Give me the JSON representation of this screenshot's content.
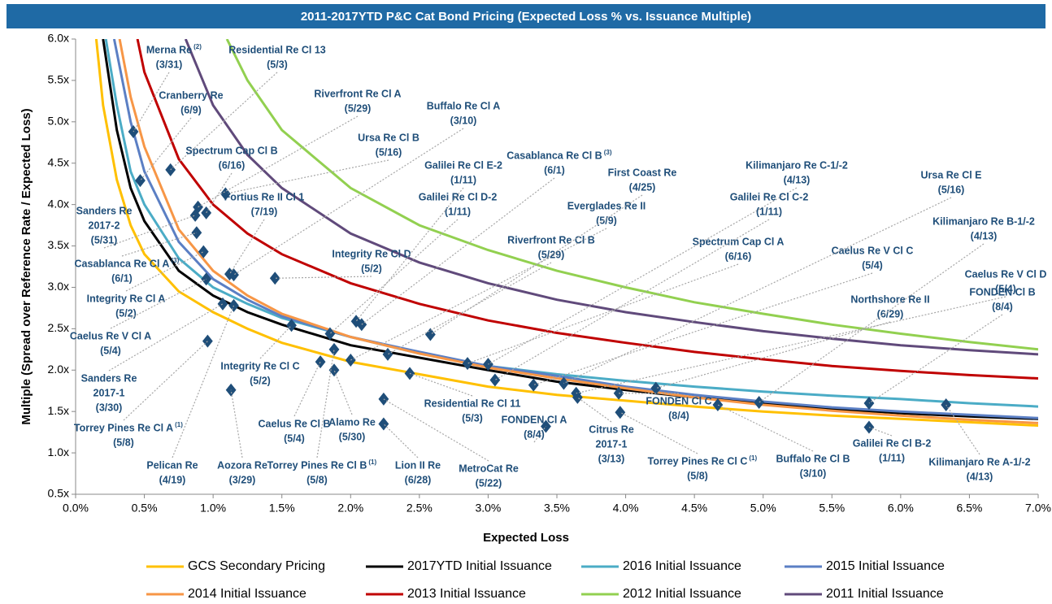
{
  "chart_data": {
    "type": "line",
    "title": "2011-2017YTD P&C Cat Bond Pricing (Expected Loss % vs. Issuance Multiple)",
    "xlabel": "Expected Loss",
    "ylabel": "Multiple (Spread over Reference Rate / Expected Loss)",
    "xlim": [
      0,
      7
    ],
    "ylim": [
      0.5,
      6
    ],
    "xticks": [
      {
        "value": 0,
        "label": "0.0%"
      },
      {
        "value": 0.5,
        "label": "0.5%"
      },
      {
        "value": 1,
        "label": "1.0%"
      },
      {
        "value": 1.5,
        "label": "1.5%"
      },
      {
        "value": 2,
        "label": "2.0%"
      },
      {
        "value": 2.5,
        "label": "2.5%"
      },
      {
        "value": 3,
        "label": "3.0%"
      },
      {
        "value": 3.5,
        "label": "3.5%"
      },
      {
        "value": 4,
        "label": "4.0%"
      },
      {
        "value": 4.5,
        "label": "4.5%"
      },
      {
        "value": 5,
        "label": "5.0%"
      },
      {
        "value": 5.5,
        "label": "5.5%"
      },
      {
        "value": 6,
        "label": "6.0%"
      },
      {
        "value": 6.5,
        "label": "6.5%"
      },
      {
        "value": 7,
        "label": "7.0%"
      }
    ],
    "yticks": [
      {
        "value": 0.5,
        "label": "0.5x"
      },
      {
        "value": 1,
        "label": "1.0x"
      },
      {
        "value": 1.5,
        "label": "1.5x"
      },
      {
        "value": 2,
        "label": "2.0x"
      },
      {
        "value": 2.5,
        "label": "2.5x"
      },
      {
        "value": 3,
        "label": "3.0x"
      },
      {
        "value": 3.5,
        "label": "3.5x"
      },
      {
        "value": 4,
        "label": "4.0x"
      },
      {
        "value": 4.5,
        "label": "4.5x"
      },
      {
        "value": 5,
        "label": "5.0x"
      },
      {
        "value": 5.5,
        "label": "5.5x"
      },
      {
        "value": 6,
        "label": "6.0x"
      }
    ],
    "series": [
      {
        "name": "GCS Secondary Pricing",
        "color": "#ffc000",
        "x": [
          0.15,
          0.2,
          0.3,
          0.4,
          0.5,
          0.75,
          1,
          1.25,
          1.5,
          2,
          2.5,
          3,
          3.5,
          4,
          4.5,
          5,
          5.5,
          6,
          6.5,
          7
        ],
        "values": [
          6.0,
          5.2,
          4.3,
          3.75,
          3.4,
          2.95,
          2.7,
          2.5,
          2.33,
          2.1,
          1.95,
          1.8,
          1.7,
          1.63,
          1.56,
          1.5,
          1.45,
          1.41,
          1.37,
          1.33
        ]
      },
      {
        "name": "2017YTD Initial Issuance",
        "color": "#000000",
        "x": [
          0.2,
          0.3,
          0.4,
          0.5,
          0.75,
          1,
          1.25,
          1.5,
          2,
          2.5,
          3,
          3.5,
          4,
          4.5,
          5,
          5.5,
          6,
          6.5,
          7
        ],
        "values": [
          6.0,
          4.9,
          4.2,
          3.8,
          3.2,
          2.9,
          2.7,
          2.55,
          2.3,
          2.15,
          2.0,
          1.86,
          1.76,
          1.67,
          1.6,
          1.53,
          1.48,
          1.44,
          1.41
        ]
      },
      {
        "name": "2016 Initial Issuance",
        "color": "#4bacc6",
        "x": [
          0.22,
          0.3,
          0.4,
          0.5,
          0.75,
          1,
          1.25,
          1.5,
          2,
          2.5,
          3,
          3.5,
          4,
          4.5,
          5,
          5.5,
          6,
          6.5,
          7
        ],
        "values": [
          6.0,
          5.2,
          4.4,
          4.0,
          3.35,
          3.0,
          2.8,
          2.63,
          2.4,
          2.2,
          2.05,
          1.95,
          1.87,
          1.8,
          1.74,
          1.69,
          1.65,
          1.6,
          1.56
        ]
      },
      {
        "name": "2015 Initial Issuance",
        "color": "#5b7fc4",
        "x": [
          0.28,
          0.4,
          0.5,
          0.75,
          1,
          1.25,
          1.5,
          2,
          2.5,
          3,
          3.5,
          4,
          4.5,
          5,
          5.5,
          6,
          6.5,
          7
        ],
        "values": [
          6.0,
          5.0,
          4.4,
          3.55,
          3.1,
          2.85,
          2.65,
          2.4,
          2.22,
          2.05,
          1.93,
          1.8,
          1.7,
          1.62,
          1.55,
          1.5,
          1.46,
          1.42
        ]
      },
      {
        "name": "2014 Initial Issuance",
        "color": "#f79646",
        "x": [
          0.32,
          0.4,
          0.5,
          0.75,
          1,
          1.25,
          1.5,
          2,
          2.5,
          3,
          3.5,
          4,
          4.5,
          5,
          5.5,
          6,
          6.5,
          7
        ],
        "values": [
          6.0,
          5.3,
          4.7,
          3.7,
          3.2,
          2.9,
          2.68,
          2.4,
          2.2,
          2.03,
          1.9,
          1.78,
          1.67,
          1.58,
          1.51,
          1.45,
          1.4,
          1.36
        ]
      },
      {
        "name": "2013 Initial Issuance",
        "color": "#c00000",
        "x": [
          0.45,
          0.5,
          0.75,
          1,
          1.25,
          1.5,
          2,
          2.5,
          3,
          3.5,
          4,
          4.5,
          5,
          5.5,
          6,
          6.5,
          7
        ],
        "values": [
          6.0,
          5.6,
          4.55,
          4.0,
          3.65,
          3.4,
          3.05,
          2.8,
          2.6,
          2.45,
          2.33,
          2.22,
          2.13,
          2.05,
          1.99,
          1.94,
          1.9
        ]
      },
      {
        "name": "2012 Initial Issuance",
        "color": "#92d050",
        "x": [
          1.1,
          1.25,
          1.5,
          2,
          2.5,
          3,
          3.5,
          4,
          4.5,
          5,
          5.5,
          6,
          6.5,
          7
        ],
        "values": [
          6.0,
          5.5,
          4.9,
          4.2,
          3.75,
          3.45,
          3.2,
          3.0,
          2.82,
          2.68,
          2.55,
          2.44,
          2.34,
          2.25
        ]
      },
      {
        "name": "2011 Initial Issuance",
        "color": "#604a7b",
        "x": [
          0.8,
          1,
          1.25,
          1.5,
          2,
          2.5,
          3,
          3.5,
          4,
          4.5,
          5,
          5.5,
          6,
          6.5,
          7
        ],
        "values": [
          6.0,
          5.2,
          4.6,
          4.2,
          3.65,
          3.3,
          3.05,
          2.85,
          2.7,
          2.58,
          2.47,
          2.38,
          2.3,
          2.24,
          2.19
        ]
      }
    ],
    "deal_color": "#1f4e79",
    "deals": [
      {
        "label": [
          "Merna Re",
          "(3/31)"
        ],
        "note": "(2)",
        "x": 0.42,
        "y": 4.88
      },
      {
        "label": [
          "Cranberry Re",
          "(6/9)"
        ],
        "x": 0.47,
        "y": 4.29
      },
      {
        "label": [
          "Residential Re Cl 13",
          "(5/3)"
        ],
        "x": 0.69,
        "y": 4.42
      },
      {
        "label": [
          "Riverfront Re Cl A",
          "(5/29)"
        ],
        "x": 0.89,
        "y": 3.97
      },
      {
        "label": [
          "Spectrum Cap Cl B",
          "(6/16)"
        ],
        "x": 0.95,
        "y": 3.9
      },
      {
        "label": [
          "Sanders Re",
          "2017-2",
          "(5/31)"
        ],
        "x": 0.87,
        "y": 3.87
      },
      {
        "label": [
          "Casablanca Re Cl A",
          "(6/1)"
        ],
        "note": "(3)",
        "x": 0.88,
        "y": 3.66
      },
      {
        "label": [
          "Integrity Re Cl A",
          "(5/2)"
        ],
        "x": 0.93,
        "y": 3.43
      },
      {
        "label": [
          "Caelus Re V Cl A",
          "(5/4)"
        ],
        "x": 0.95,
        "y": 3.1
      },
      {
        "label": [
          "Torrey Pines Re Cl A",
          "(5/8)"
        ],
        "note": "(1)",
        "x": 0.96,
        "y": 2.35
      },
      {
        "label": [
          "Sanders Re",
          "2017-1",
          "(3/30)"
        ],
        "x": 1.07,
        "y": 2.8
      },
      {
        "label": [
          "Ursa Re Cl B",
          "(5/16)"
        ],
        "x": 1.09,
        "y": 4.13
      },
      {
        "label": [
          "Fortius Re II Cl 1",
          "(7/19)"
        ],
        "x": 1.12,
        "y": 3.16
      },
      {
        "label": [
          "Buffalo Re Cl A",
          "(3/10)"
        ],
        "x": 1.15,
        "y": 3.15
      },
      {
        "label": [
          "Pelican Re",
          "(4/19)"
        ],
        "x": 1.15,
        "y": 2.78
      },
      {
        "label": [
          "Aozora Re",
          "(3/29)"
        ],
        "x": 1.13,
        "y": 1.76
      },
      {
        "label": [
          "Integrity Re Cl D",
          "(5/2)"
        ],
        "x": 1.45,
        "y": 3.11
      },
      {
        "label": [
          "Integrity Re Cl C",
          "(5/2)"
        ],
        "x": 1.57,
        "y": 2.54
      },
      {
        "label": [
          "Caelus Re Cl B",
          "(5/4)"
        ],
        "x": 1.78,
        "y": 2.1
      },
      {
        "label": [
          "Galilei Re Cl D-2",
          "(1/11)"
        ],
        "x": 1.85,
        "y": 2.44
      },
      {
        "label": [
          "Alamo Re",
          "(5/30)"
        ],
        "x": 1.88,
        "y": 2.0
      },
      {
        "label": [
          "Torrey Pines Re Cl B",
          "(5/8)"
        ],
        "note": "(1)",
        "x": 1.88,
        "y": 2.25
      },
      {
        "label": [
          "Everglades Re II",
          "(5/9)"
        ],
        "x": 2.0,
        "y": 2.12
      },
      {
        "label": [
          "Galilei Re Cl E-2",
          "(1/11)"
        ],
        "x": 2.04,
        "y": 2.59
      },
      {
        "label": [
          "Casablanca Re Cl B",
          "(6/1)"
        ],
        "note": "(3)",
        "x": 2.08,
        "y": 2.55
      },
      {
        "label": [
          "MetroCat Re",
          "(5/22)"
        ],
        "x": 2.24,
        "y": 1.65
      },
      {
        "label": [
          "Lion II Re",
          "(6/28)"
        ],
        "x": 2.24,
        "y": 1.35
      },
      {
        "label": [
          "Riverfront Re Cl B",
          "(5/29)"
        ],
        "x": 2.27,
        "y": 2.19
      },
      {
        "label": [
          "Residential Re Cl 11",
          "(5/3)"
        ],
        "x": 2.43,
        "y": 1.96
      },
      {
        "label": [
          "First Coast Re",
          "(4/25)"
        ],
        "x": 2.58,
        "y": 2.43
      },
      {
        "label": [
          "Spectrum Cap Cl A",
          "(6/16)"
        ],
        "x": 2.85,
        "y": 2.08
      },
      {
        "label": [
          "Kilimanjaro Re C-1/-2",
          "(4/13)"
        ],
        "x": 3.0,
        "y": 2.07
      },
      {
        "label": [
          "Galilei Re Cl C-2",
          "(1/11)"
        ],
        "x": 3.05,
        "y": 1.88
      },
      {
        "label": [
          "Caelus Re V Cl C",
          "(5/4)"
        ],
        "x": 3.33,
        "y": 1.82
      },
      {
        "label": [
          "FONDEN Cl A",
          "(8/4)"
        ],
        "x": 3.42,
        "y": 1.32
      },
      {
        "label": [
          "Ursa Re Cl E",
          "(5/16)"
        ],
        "x": 3.55,
        "y": 1.84
      },
      {
        "label": [
          "Caelus Re V Cl D",
          "(5/4)"
        ],
        "x": 3.64,
        "y": 1.72
      },
      {
        "label": [
          "Citrus Re",
          "2017-1",
          "(3/13)"
        ],
        "x": 3.65,
        "y": 1.67
      },
      {
        "label": [
          "FONDEN Cl C",
          "(8/4)"
        ],
        "x": 3.95,
        "y": 1.72
      },
      {
        "label": [
          "Torrey Pines Re Cl C",
          "(5/8)"
        ],
        "note": "(1)",
        "x": 3.96,
        "y": 1.49
      },
      {
        "label": [
          "Northshore Re II",
          "(6/29)"
        ],
        "x": 4.22,
        "y": 1.78
      },
      {
        "label": [
          "Buffalo Re Cl B",
          "(3/10)"
        ],
        "x": 4.67,
        "y": 1.58
      },
      {
        "label": [
          "Kilimanjaro Re B-1/-2",
          "(4/13)"
        ],
        "x": 4.97,
        "y": 1.61
      },
      {
        "label": [
          "FONDEN Cl B",
          "(8/4)"
        ],
        "x": 5.77,
        "y": 1.6
      },
      {
        "label": [
          "Galilei Re Cl B-2",
          "(1/11)"
        ],
        "x": 5.77,
        "y": 1.31
      },
      {
        "label": [
          "Kilimanjaro Re A-1/-2",
          "(4/13)"
        ],
        "x": 6.33,
        "y": 1.58
      }
    ]
  }
}
